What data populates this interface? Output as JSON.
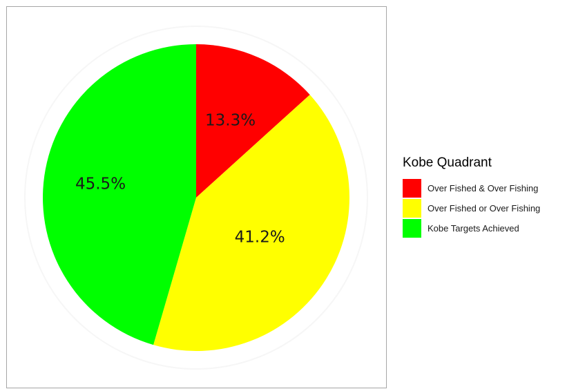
{
  "chart_data": {
    "type": "pie",
    "categories": [
      "Over Fished & Over Fishing",
      "Over Fished or Over Fishing",
      "Kobe Targets Achieved"
    ],
    "values": [
      13.3,
      41.2,
      45.5
    ],
    "value_labels": [
      "13.3%",
      "41.2%",
      "45.5%"
    ],
    "colors": [
      "#ff0000",
      "#ffff00",
      "#00ff00"
    ],
    "start_angle": "12 o'clock",
    "direction": "clockwise",
    "legend": {
      "title": "Kobe Quadrant",
      "placement": "right"
    }
  }
}
